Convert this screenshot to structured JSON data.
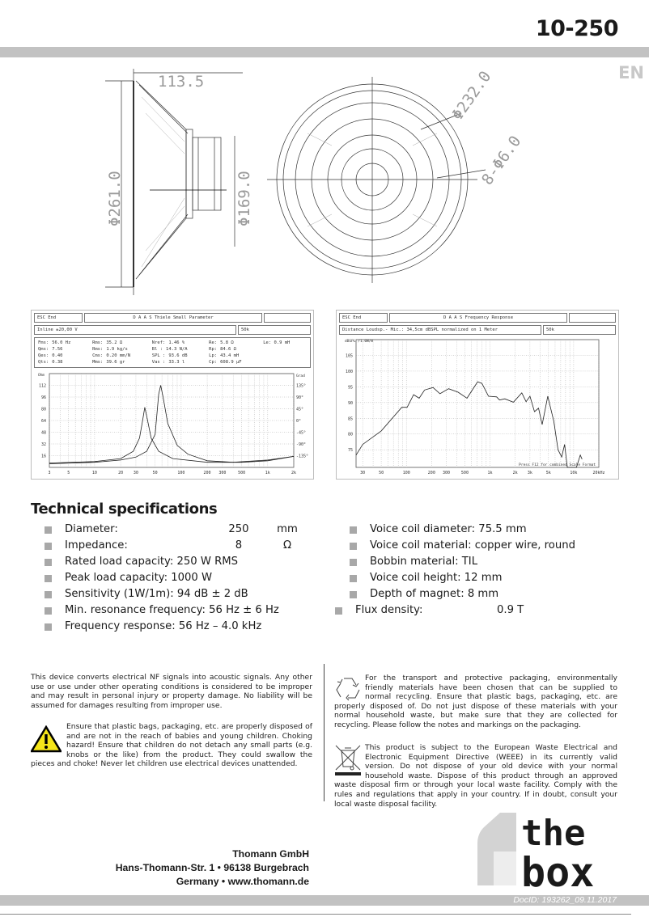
{
  "header": {
    "model": "10-250",
    "language": "EN"
  },
  "drawing": {
    "depth": "113.5",
    "outer_diameter": "Φ261.0",
    "magnet_diameter": "Φ169.0",
    "bolt_circle": "Φ232.0",
    "holes": "8-Φ6.0"
  },
  "ts_panel": {
    "esc": "ESC  End",
    "title": "D A A S   Thiele Small Parameter",
    "line": "Inline  ±20,00 V",
    "range": "50k",
    "params": [
      [
        "Fms:",
        "56.0 Hz",
        "Rms:",
        "35.2 Ω",
        "Nref:",
        "1.46 %",
        "Re:",
        "5.8 Ω",
        "Le: 0.9 mH"
      ],
      [
        "Qms:",
        "7.56",
        "Rms:",
        "1.9 kg/s",
        "Bl :",
        "14.3 N/A",
        "Rp:",
        "84.6 Ω",
        ""
      ],
      [
        "Qes:",
        "0.40",
        "Cms:",
        "0.20 mm/N",
        "SPL :",
        "93.6 dB",
        "Lp:",
        "43.4 mH",
        ""
      ],
      [
        "Qts:",
        "0.38",
        "Mms:",
        "39.6 gr",
        "Vas :",
        "33.3 l",
        "Cp:",
        "608.9 µF",
        ""
      ]
    ]
  },
  "fr_panel": {
    "esc": "ESC  End",
    "title": "D A A S   Frequency Response",
    "line": "Distance Loudsp.- Mic.: 34,5cm dBSPL normalized on 1 Meter",
    "range": "50k",
    "note": "Press F12 for combined Scale Format"
  },
  "chart_data": [
    {
      "type": "line",
      "ylabel": "Ohm",
      "y2label": "Grad",
      "xscale": "log",
      "xlim": [
        3,
        2000
      ],
      "ylim": [
        0,
        128
      ],
      "grid": true,
      "xticks": [
        "3",
        "5",
        "10",
        "20",
        "30",
        "50",
        "100",
        "200",
        "300",
        "500",
        "1k",
        "2k"
      ],
      "xtick_values": [
        3,
        5,
        10,
        20,
        30,
        50,
        100,
        200,
        300,
        500,
        1000,
        2000
      ],
      "yticks": [
        "16",
        "32",
        "48",
        "64",
        "80",
        "96",
        "112"
      ],
      "ytick_values": [
        16,
        32,
        48,
        64,
        80,
        96,
        112
      ],
      "y2ticks": [
        "-135°",
        "-90°",
        "-45°",
        "0°",
        "45°",
        "90°",
        "135°"
      ],
      "series": [
        {
          "x": [
            3,
            10,
            20,
            28,
            33,
            36,
            38,
            40,
            45,
            55,
            80,
            200,
            500,
            1000,
            2000
          ],
          "y": [
            6,
            8,
            12,
            22,
            40,
            65,
            82,
            70,
            40,
            22,
            12,
            7,
            7,
            9,
            15
          ]
        },
        {
          "x": [
            3,
            10,
            20,
            30,
            40,
            50,
            55,
            58,
            62,
            70,
            90,
            120,
            200,
            400,
            1000,
            2000
          ],
          "y": [
            5,
            7,
            10,
            14,
            22,
            45,
            100,
            112,
            95,
            60,
            30,
            18,
            9,
            7,
            10,
            15
          ]
        }
      ]
    },
    {
      "type": "line",
      "ylabel": "dBSPL /1.0W/m",
      "xscale": "log",
      "xlim": [
        25,
        20000
      ],
      "ylim": [
        69.4,
        110
      ],
      "grid": true,
      "xticks": [
        "30",
        "50",
        "100",
        "200",
        "300",
        "500",
        "1k",
        "2k",
        "3k",
        "5k",
        "10k",
        "20kHz"
      ],
      "xtick_values": [
        30,
        50,
        100,
        200,
        300,
        500,
        1000,
        2000,
        3000,
        5000,
        10000,
        20000
      ],
      "yticks": [
        "75",
        "80",
        "85",
        "90",
        "95",
        "100",
        "105"
      ],
      "ytick_values": [
        75,
        80,
        85,
        90,
        95,
        100,
        105
      ],
      "series": [
        {
          "x": [
            25,
            30,
            50,
            88,
            102,
            122,
            142,
            165,
            208,
            252,
            320,
            415,
            530,
            710,
            800,
            960,
            1200,
            1300,
            1500,
            1900,
            2400,
            2700,
            3000,
            3400,
            3800,
            4200,
            4900,
            5800,
            6500,
            7200,
            7800,
            8400,
            10800,
            12000,
            12600
          ],
          "y": [
            73.3,
            76.7,
            81,
            88.5,
            88.5,
            92.5,
            91.4,
            94,
            94.8,
            92.8,
            94.4,
            93.3,
            91.4,
            96.6,
            96.1,
            92,
            91.8,
            90.8,
            91.2,
            90.1,
            93.1,
            90.3,
            92,
            87.1,
            88.2,
            83,
            92,
            84,
            75,
            72.7,
            76.7,
            69.4,
            69.4,
            73.3,
            72
          ]
        }
      ]
    }
  ],
  "specs": {
    "title": "Technical specifications",
    "left": [
      {
        "label": "Diameter:",
        "value": "250",
        "unit": "mm"
      },
      {
        "label": "Impedance:",
        "value": "8",
        "unit": "Ω"
      },
      {
        "text": "Rated load capacity:   250 W RMS"
      },
      {
        "text": "Peak load capacity:    1000 W"
      },
      {
        "text": "Sensitivity (1W/1m):   94 dB ± 2 dB"
      },
      {
        "text": "Min. resonance frequency:  56 Hz ± 6 Hz"
      },
      {
        "text": "Frequency response:  56 Hz – 4.0 kHz"
      }
    ],
    "right": [
      {
        "text": "Voice coil diameter:    75.5 mm"
      },
      {
        "text": "Voice coil material:    copper wire, round"
      },
      {
        "text": "Bobbin material:    TIL"
      },
      {
        "text": "Voice coil height:    12 mm"
      },
      {
        "text": "Depth of magnet:    8 mm"
      },
      {
        "label": "Flux density:",
        "value": "0.9 T"
      }
    ]
  },
  "legal": {
    "usage": "This device converts electrical NF signals into acoustic signals. Any other use or use under other operating conditions is considered to be improper and may result in personal injury or property damage. No liability will be assumed for damages resulting from improper use.",
    "choking": "Ensure that plastic bags, packaging, etc. are properly disposed of and are not in the reach of babies and young children. Choking hazard! Ensure that children do not detach any small parts (e.g. knobs or the like) from the product. They could swallow the pieces and choke! Never let children use electrical devices unattended.",
    "recycling": "For the transport and protective packaging, environmentally friendly materials have been chosen that can be supplied to normal recycling. Ensure that plastic bags, packaging, etc. are properly disposed of.  Do not just dispose of these materials with your normal household waste, but make sure that they are collected for recycling. Please follow the notes and markings on the packaging.",
    "weee": "This product is subject to the European Waste Electrical and Electronic Equipment Directive (WEEE) in its currently valid version. Do not dispose of your old device with your normal household waste. Dispose of this product through an approved waste disposal firm or through your local waste facility. Comply with the rules and regulations that apply in your country. If in doubt, consult your local waste disposal facility."
  },
  "footer": {
    "company": "Thomann GmbH",
    "street": "Hans-Thomann-Str. 1 • 96138 Burgebrach",
    "country": "Germany • www.thomann.de",
    "logo": "the box",
    "docid": "DocID: 193262_09.11.2017"
  }
}
